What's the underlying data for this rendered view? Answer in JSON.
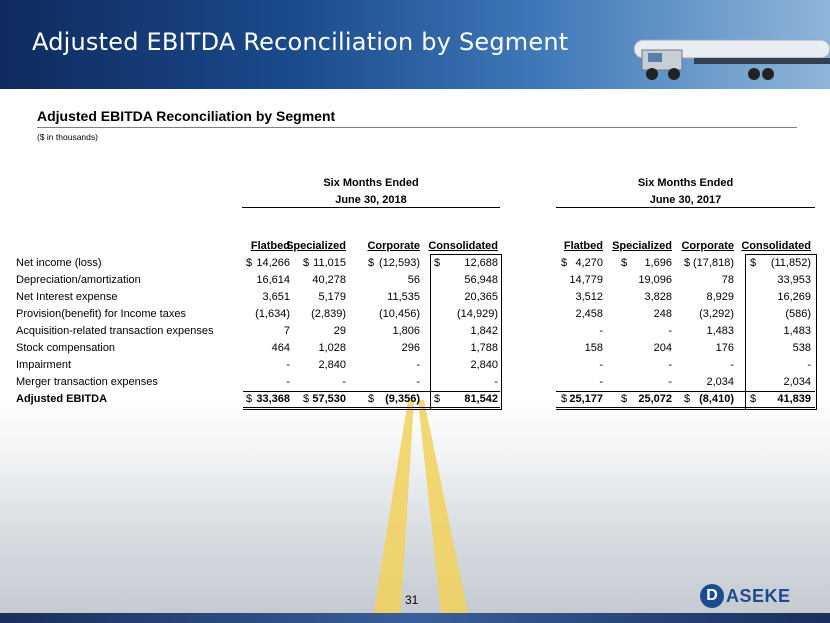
{
  "banner": {
    "title": "Adjusted EBITDA Reconciliation by Segment"
  },
  "section": {
    "title": "Adjusted EBITDA Reconciliation by Segment",
    "subtitle": "($ in thousands)"
  },
  "periods": [
    {
      "line1": "Six Months Ended",
      "line2": "June 30, 2018"
    },
    {
      "line1": "Six Months Ended",
      "line2": "June 30, 2017"
    }
  ],
  "columns": [
    "Flatbed",
    "Specialized",
    "Corporate",
    "Consolidated"
  ],
  "rows": [
    {
      "label": "Net income (loss)",
      "dollar": true,
      "v2018": [
        "14,266",
        "11,015",
        "(12,593)",
        "12,688"
      ],
      "v2017": [
        "4,270",
        "1,696",
        "(17,818)",
        "(11,852)"
      ]
    },
    {
      "label": "Depreciation/amortization",
      "v2018": [
        "16,614",
        "40,278",
        "56",
        "56,948"
      ],
      "v2017": [
        "14,779",
        "19,096",
        "78",
        "33,953"
      ]
    },
    {
      "label": "Net Interest expense",
      "v2018": [
        "3,651",
        "5,179",
        "11,535",
        "20,365"
      ],
      "v2017": [
        "3,512",
        "3,828",
        "8,929",
        "16,269"
      ]
    },
    {
      "label": "Provision(benefit) for Income taxes",
      "v2018": [
        "(1,634)",
        "(2,839)",
        "(10,456)",
        "(14,929)"
      ],
      "v2017": [
        "2,458",
        "248",
        "(3,292)",
        "(586)"
      ]
    },
    {
      "label": "Acquisition-related transaction expenses",
      "v2018": [
        "7",
        "29",
        "1,806",
        "1,842"
      ],
      "v2017": [
        "-",
        "-",
        "1,483",
        "1,483"
      ]
    },
    {
      "label": "Stock compensation",
      "v2018": [
        "464",
        "1,028",
        "296",
        "1,788"
      ],
      "v2017": [
        "158",
        "204",
        "176",
        "538"
      ]
    },
    {
      "label": "Impairment",
      "v2018": [
        "-",
        "2,840",
        "-",
        "2,840"
      ],
      "v2017": [
        "-",
        "-",
        "-",
        "-"
      ]
    },
    {
      "label": "Merger transaction expenses",
      "v2018": [
        "-",
        "-",
        "-",
        "-"
      ],
      "v2017": [
        "-",
        "-",
        "2,034",
        "2,034"
      ]
    },
    {
      "label": "Adjusted EBITDA",
      "bold": true,
      "dollar": true,
      "v2018": [
        "33,368",
        "57,530",
        "(9,356)",
        "81,542"
      ],
      "v2017": [
        "25,177",
        "25,072",
        "(8,410)",
        "41,839"
      ]
    }
  ],
  "dollar_sign": "$",
  "page_number": "31",
  "logo": {
    "mark": "D",
    "text": "ASEKE"
  },
  "colors": {
    "banner": "#1a4a8c",
    "brand": "#1c4b8f"
  }
}
